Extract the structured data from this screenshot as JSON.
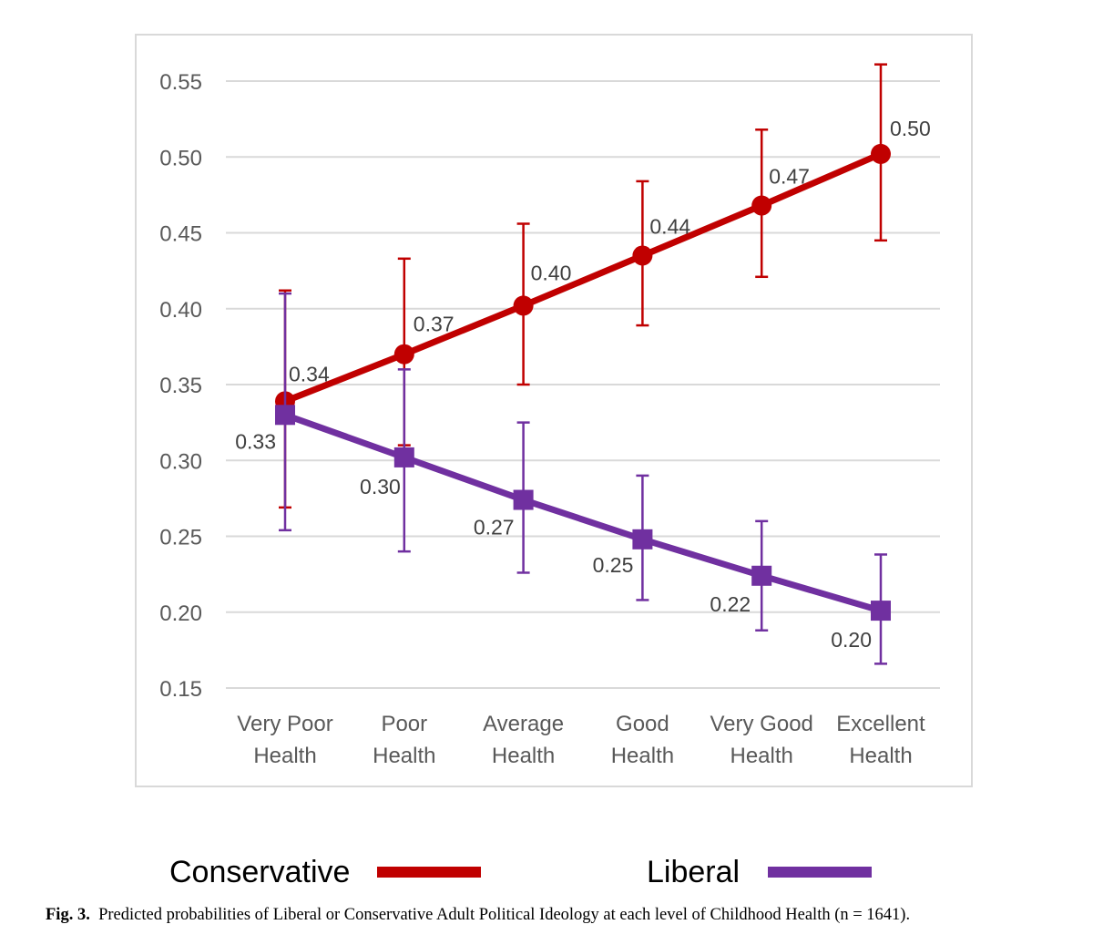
{
  "chart_data": {
    "type": "line",
    "categories": [
      [
        "Very Poor",
        "Health"
      ],
      [
        "Poor",
        "Health"
      ],
      [
        "Average",
        "Health"
      ],
      [
        "Good",
        "Health"
      ],
      [
        "Very Good",
        "Health"
      ],
      [
        "Excellent",
        "Health"
      ]
    ],
    "ylim": [
      0.15,
      0.55
    ],
    "yticks": [
      "0.15",
      "0.20",
      "0.25",
      "0.30",
      "0.35",
      "0.40",
      "0.45",
      "0.50",
      "0.55"
    ],
    "grid": true,
    "legend_position": "bottom",
    "series": [
      {
        "name": "Conservative",
        "color": "#C00000",
        "marker": "circle",
        "values": [
          0.339,
          0.37,
          0.402,
          0.435,
          0.468,
          0.502
        ],
        "labels": [
          "0.34",
          "0.37",
          "0.40",
          "0.44",
          "0.47",
          "0.50"
        ],
        "error_low": [
          0.269,
          0.31,
          0.35,
          0.389,
          0.421,
          0.445
        ],
        "error_high": [
          0.412,
          0.433,
          0.456,
          0.484,
          0.518,
          0.561
        ]
      },
      {
        "name": "Liberal",
        "color": "#7030A0",
        "marker": "square",
        "values": [
          0.33,
          0.302,
          0.274,
          0.248,
          0.224,
          0.201
        ],
        "labels": [
          "0.33",
          "0.30",
          "0.27",
          "0.25",
          "0.22",
          "0.20"
        ],
        "error_low": [
          0.254,
          0.24,
          0.226,
          0.208,
          0.188,
          0.166
        ],
        "error_high": [
          0.41,
          0.36,
          0.325,
          0.29,
          0.26,
          0.238
        ]
      }
    ]
  },
  "caption": {
    "label": "Fig. 3.",
    "text": "Predicted probabilities of Liberal or Conservative Adult Political Ideology at each level of Childhood Health (n = 1641)."
  }
}
